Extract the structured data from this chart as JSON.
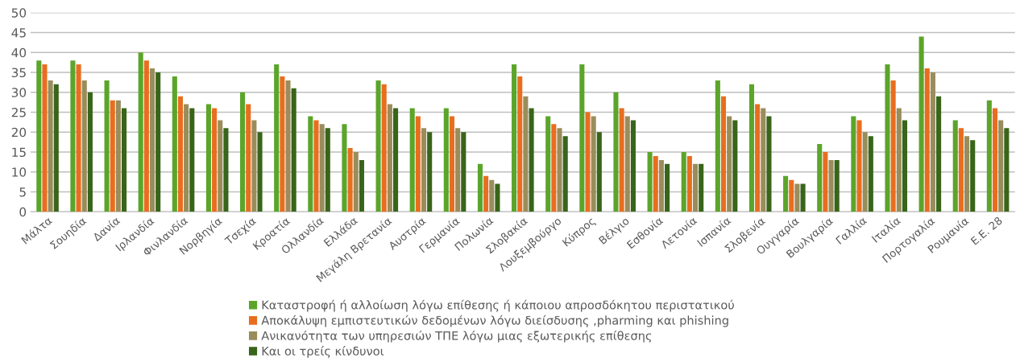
{
  "chart_data": {
    "type": "bar",
    "categories": [
      "Μάλτα",
      "Σουηδία",
      "Δανία",
      "Ιρλανδία",
      "Φινλανδία",
      "Νορβηγία",
      "Τσεχία",
      "Κροατία",
      "Ολλανδία",
      "Ελλάδα",
      "Μεγάλη Βρετανία",
      "Αυστρία",
      "Γερμανία",
      "Πολωνία",
      "Σλοβακία",
      "Λουξεμβούργο",
      "Κύπρος",
      "Βέλγιο",
      "Εσθονία",
      "Λετονία",
      "Ισπανία",
      "Σλοβενία",
      "Ουγγαρία",
      "Βουλγαρία",
      "Γαλλία",
      "Ιταλία",
      "Πορτογαλία",
      "Ρουμανία",
      "Ε.Ε. 28"
    ],
    "series": [
      {
        "name": "Καταστροφή ή αλλοίωση λόγω επίθεσης ή κάποιου απροσδόκητου περιστατικού",
        "color": "#5ba52a",
        "values": [
          38,
          38,
          33,
          40,
          34,
          27,
          30,
          37,
          24,
          22,
          33,
          26,
          26,
          12,
          37,
          24,
          37,
          30,
          15,
          15,
          33,
          32,
          9,
          17,
          24,
          37,
          44,
          23,
          28
        ]
      },
      {
        "name": "Αποκάλυψη εμπιστευτικών δεδομένων λόγω διείσδυσης ,pharming και phishing",
        "color": "#e86e1f",
        "values": [
          37,
          37,
          28,
          38,
          29,
          26,
          27,
          34,
          23,
          16,
          32,
          24,
          24,
          9,
          34,
          22,
          25,
          26,
          14,
          14,
          29,
          27,
          8,
          15,
          23,
          33,
          36,
          21,
          26
        ]
      },
      {
        "name": "Ανικανότητα των υπηρεσιών ΤΠΕ λόγω μιας εξωτερικής επίθεσης",
        "color": "#998d5c",
        "values": [
          33,
          33,
          28,
          36,
          27,
          23,
          23,
          33,
          22,
          15,
          27,
          21,
          21,
          8,
          29,
          21,
          24,
          24,
          13,
          12,
          24,
          26,
          7,
          13,
          20,
          26,
          35,
          19,
          23
        ]
      },
      {
        "name": "Και οι τρείς κίνδυνοι",
        "color": "#38651a",
        "values": [
          32,
          30,
          26,
          35,
          26,
          21,
          20,
          31,
          21,
          13,
          26,
          20,
          20,
          7,
          26,
          19,
          20,
          23,
          12,
          12,
          23,
          24,
          7,
          13,
          19,
          23,
          29,
          18,
          21
        ]
      }
    ],
    "ylim": [
      0,
      50
    ],
    "yticks": [
      0,
      5,
      10,
      15,
      20,
      25,
      30,
      35,
      40,
      45,
      50
    ],
    "grid": "y",
    "legend": "bottom"
  }
}
